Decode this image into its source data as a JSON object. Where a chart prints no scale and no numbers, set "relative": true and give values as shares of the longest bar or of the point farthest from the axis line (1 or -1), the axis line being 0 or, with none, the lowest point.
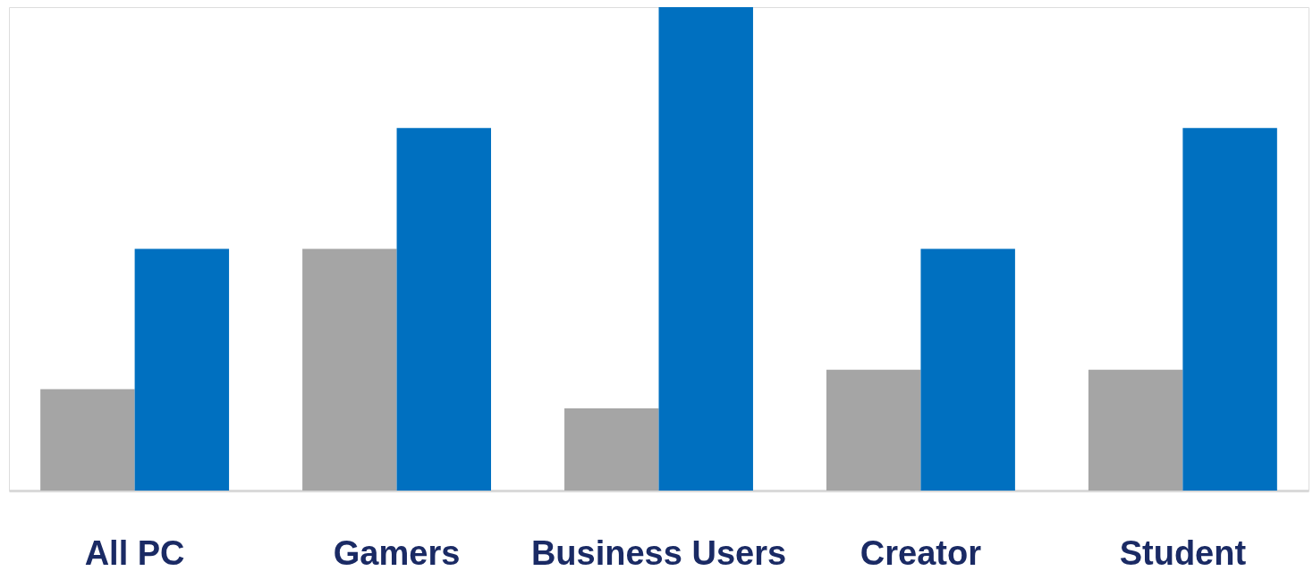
{
  "chart_data": {
    "type": "bar",
    "relative": true,
    "categories": [
      "All PC",
      "Gamers",
      "Business Users",
      "Creator",
      "Student"
    ],
    "series": [
      {
        "color": "#a5a5a5",
        "values": [
          0.21,
          0.5,
          0.17,
          0.25,
          0.25
        ]
      },
      {
        "color": "#0070c0",
        "values": [
          0.5,
          0.75,
          1,
          0.5,
          0.75
        ]
      }
    ]
  }
}
